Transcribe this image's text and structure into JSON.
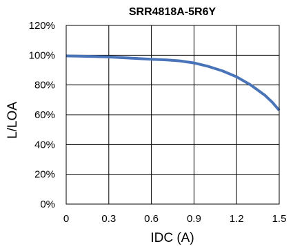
{
  "chart_data": {
    "type": "line",
    "title": "SRR4818A-5R6Y",
    "xlabel": "IDC (A)",
    "ylabel": "L/LOA",
    "xlim": [
      0,
      1.5
    ],
    "ylim": [
      0,
      120
    ],
    "x_ticks": [
      "0",
      "0.3",
      "0.6",
      "0.9",
      "1.2",
      "1.5"
    ],
    "y_ticks": [
      "0%",
      "20%",
      "40%",
      "60%",
      "80%",
      "100%",
      "120%"
    ],
    "grid": true,
    "line_color": "#4a74b8",
    "series": [
      {
        "x": [
          0,
          0.1,
          0.2,
          0.3,
          0.4,
          0.5,
          0.6,
          0.7,
          0.8,
          0.9,
          1.0,
          1.1,
          1.2,
          1.3,
          1.4,
          1.45,
          1.5
        ],
        "y": [
          99.5,
          99.3,
          99.1,
          98.8,
          98.3,
          97.8,
          97.3,
          96.9,
          96.2,
          94.8,
          92.5,
          89.5,
          85.5,
          80.0,
          73.0,
          68.5,
          63.0
        ]
      }
    ]
  }
}
